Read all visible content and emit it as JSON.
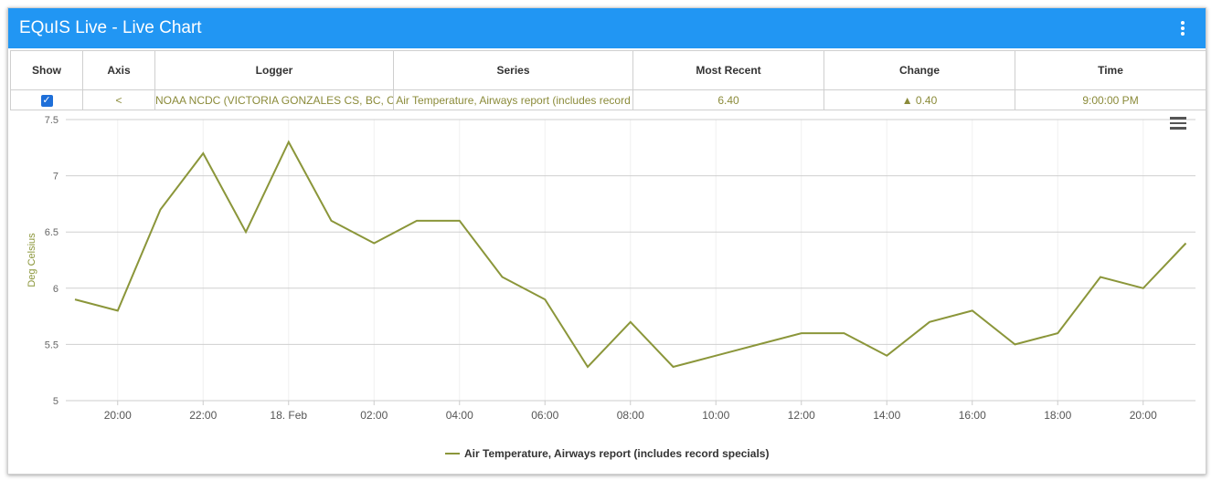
{
  "window": {
    "title": "EQuIS Live - Live Chart"
  },
  "table": {
    "headers": [
      "Show",
      "Axis",
      "Logger",
      "Series",
      "Most Recent",
      "Change",
      "Time"
    ],
    "row": {
      "axis": "<",
      "logger": "NOAA NCDC (VICTORIA GONZALES CS, BC, CAN",
      "series": "Air Temperature, Airways report (includes record",
      "most_recent": "6.40",
      "change": "▲ 0.40",
      "time": "9:00:00 PM",
      "show_checked": true
    }
  },
  "colors": {
    "accent": "#2196f3",
    "series": "#8b963a"
  },
  "chart_data": {
    "type": "line",
    "ylabel": "Deg Celsius",
    "ylim": [
      5,
      7.5
    ],
    "yticks": [
      "5",
      "5.5",
      "6",
      "6.5",
      "7",
      "7.5"
    ],
    "xticks": [
      "20:00",
      "22:00",
      "18. Feb",
      "02:00",
      "04:00",
      "06:00",
      "08:00",
      "10:00",
      "12:00",
      "14:00",
      "16:00",
      "18:00",
      "20:00"
    ],
    "series": [
      {
        "name": "Air Temperature, Airways report (includes record specials)",
        "x": [
          "17 Feb 19:00",
          "17 Feb 20:00",
          "17 Feb 21:00",
          "17 Feb 22:00",
          "17 Feb 23:00",
          "18 Feb 00:00",
          "18 Feb 01:00",
          "18 Feb 02:00",
          "18 Feb 03:00",
          "18 Feb 04:00",
          "18 Feb 05:00",
          "18 Feb 06:00",
          "18 Feb 07:00",
          "18 Feb 08:00",
          "18 Feb 09:00",
          "18 Feb 10:00",
          "18 Feb 11:00",
          "18 Feb 12:00",
          "18 Feb 13:00",
          "18 Feb 14:00",
          "18 Feb 15:00",
          "18 Feb 16:00",
          "18 Feb 17:00",
          "18 Feb 18:00",
          "18 Feb 19:00",
          "18 Feb 20:00",
          "18 Feb 21:00"
        ],
        "values": [
          5.9,
          5.8,
          6.7,
          7.2,
          6.5,
          7.3,
          6.6,
          6.4,
          6.6,
          6.6,
          6.1,
          5.9,
          5.3,
          5.7,
          5.3,
          5.4,
          5.5,
          5.6,
          5.6,
          5.4,
          5.7,
          5.8,
          5.5,
          5.6,
          6.1,
          6.0,
          6.4
        ]
      }
    ]
  }
}
